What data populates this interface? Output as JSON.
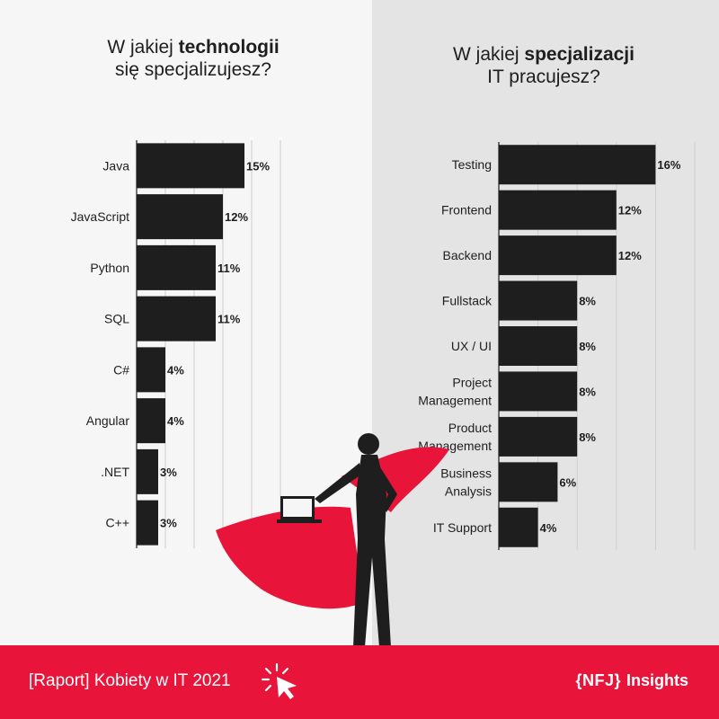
{
  "left_title": {
    "pre": "W jakiej ",
    "bold": "technologii",
    "post": " się specjalizujesz?"
  },
  "right_title": {
    "pre": "W jakiej ",
    "bold": "specjalizacji",
    "post": " IT pracujesz?"
  },
  "footer": {
    "report": "[Raport] Kobiety w IT 2021",
    "brand": "{NFJ}",
    "insights": "Insights"
  },
  "colors": {
    "bar": "#1e1e1e",
    "accent": "#e8143a",
    "left_bg": "#f6f6f6",
    "right_bg": "#e4e4e4",
    "grid": "#cfcfcf"
  },
  "icons": [
    "cursor-click-icon",
    "superhero-woman-laptop-icon"
  ],
  "chart_data": [
    {
      "type": "bar",
      "orientation": "horizontal",
      "title": "W jakiej technologii się specjalizujesz?",
      "categories": [
        "Java",
        "JavaScript",
        "Python",
        "SQL",
        "C#",
        "Angular",
        ".NET",
        "C++"
      ],
      "values": [
        15,
        12,
        11,
        11,
        4,
        4,
        3,
        3
      ],
      "labels": [
        "15%",
        "12%",
        "11%",
        "11%",
        "4%",
        "4%",
        "3%",
        "3%"
      ],
      "xlim": [
        0,
        20
      ],
      "grid": true
    },
    {
      "type": "bar",
      "orientation": "horizontal",
      "title": "W jakiej specjalizacji IT pracujesz?",
      "categories": [
        "Testing",
        "Frontend",
        "Backend",
        "Fullstack",
        "UX / UI",
        "Project Management",
        "Product Management",
        "Business Analysis",
        "IT Support"
      ],
      "categories_display": [
        [
          "Testing"
        ],
        [
          "Frontend"
        ],
        [
          "Backend"
        ],
        [
          "Fullstack"
        ],
        [
          "UX / UI"
        ],
        [
          "Project",
          "Management"
        ],
        [
          "Product",
          "Management"
        ],
        [
          "Business",
          "Analysis"
        ],
        [
          "IT Support"
        ]
      ],
      "values": [
        16,
        12,
        12,
        8,
        8,
        8,
        8,
        6,
        4
      ],
      "labels": [
        "16%",
        "12%",
        "12%",
        "8%",
        "8%",
        "8%",
        "8%",
        "6%",
        "4%"
      ],
      "xlim": [
        0,
        20
      ],
      "grid": true
    }
  ]
}
